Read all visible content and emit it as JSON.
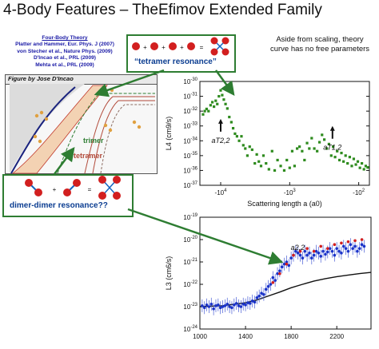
{
  "title": "4-Body Features – TheEfimov Extended Family",
  "references": {
    "heading": "Four-Body Theory",
    "lines": [
      "Platter and Hammer, Eur. Phys. J (2007)",
      "von Stecher et al., Nature Phys. (2009)",
      "D'Incao et al., PRL (2009)",
      "Mehta et al., PRL (2009)"
    ]
  },
  "figure_credit": "Figure by Jose D'Incao",
  "diagram_labels": {
    "trimer": "trimer",
    "tetramer": "tetramer"
  },
  "tetramer_box": {
    "equation": "+ + + =",
    "label": "“tetramer resonance”"
  },
  "dimer_box": {
    "label": "dimer-dimer resonance??"
  },
  "aside_text": "Aside from scaling, theory curve has no free parameters",
  "colors": {
    "green_dots": "#2e8b1e",
    "box_border": "#2e7d32",
    "box_label": "#0b3d91",
    "beige": "#f3d2b3",
    "atom_red": "#d21f1f",
    "arrow_green": "#2e7d32"
  },
  "chart_data": [
    {
      "type": "scatter",
      "ylabel": "L4 (cm9/s)",
      "xlabel": "Scattering length a (a0)",
      "x_scale": "log-negative",
      "y_scale": "log",
      "ylim": [
        1e-37,
        1e-30
      ],
      "xlim": [
        -20000,
        -70
      ],
      "y_ticks": [
        "10-30",
        "10-31",
        "10-32",
        "10-33",
        "10-34",
        "10-35",
        "10-36",
        "10-37"
      ],
      "x_ticks": [
        "-10^4",
        "-10^3",
        "-10^2"
      ],
      "annotations": [
        {
          "text": "a^T_2,2",
          "x": -10000,
          "y": 3e-33
        },
        {
          "text": "a^T_1,2",
          "x": -240,
          "y": 1e-33
        }
      ],
      "series": [
        {
          "x": [
            -18000,
            -17000,
            -16000,
            -15000,
            -14000,
            -13200,
            -12500,
            -11800,
            -11200,
            -10600,
            -10000,
            -9500,
            -9000,
            -8500,
            -8000,
            -7500,
            -7000,
            -6600,
            -6200,
            -5800,
            -5400,
            -5000,
            -4700,
            -4400,
            -4100,
            -3800,
            -3500,
            -3200,
            -3000,
            -2800,
            -2600,
            -2400,
            -2200,
            -2000,
            -1800,
            -1650,
            -1500,
            -1350,
            -1200,
            -1100,
            -1000,
            -920,
            -850,
            -780,
            -720,
            -660,
            -610,
            -560,
            -520,
            -480,
            -440,
            -400,
            -370,
            -340,
            -315,
            -290,
            -270,
            -250,
            -235,
            -220,
            -205,
            -190,
            -178,
            -166,
            -155,
            -145,
            -135,
            -126,
            -118,
            -110,
            -103,
            -96,
            -90,
            -84,
            -79,
            -74
          ],
          "y": [
            6e-33,
            1e-32,
            1.4e-32,
            1e-32,
            2.5e-32,
            4e-32,
            2e-32,
            5e-32,
            3e-32,
            1e-31,
            2.5e-31,
            1.2e-31,
            6e-32,
            3e-32,
            1.5e-32,
            4e-33,
            1.8e-33,
            7e-34,
            3e-34,
            2e-34,
            1e-34,
            2e-34,
            5e-35,
            3e-35,
            1e-35,
            4e-35,
            2.5e-35,
            3e-36,
            1.2e-35,
            4e-36,
            2e-36,
            1e-35,
            3e-36,
            1.2e-36,
            2e-35,
            1e-36,
            5e-36,
            2e-36,
            1e-36,
            5e-36,
            1.5e-36,
            2e-35,
            2e-36,
            3e-35,
            4e-35,
            2e-35,
            5e-36,
            7e-35,
            3e-35,
            1.5e-34,
            3e-35,
            2e-35,
            8e-35,
            2.5e-34,
            1.2e-34,
            3e-35,
            6e-35,
            1e-35,
            4e-35,
            8e-36,
            2e-35,
            5e-36,
            1.5e-35,
            4e-36,
            1e-35,
            3e-36,
            8e-36,
            2e-36,
            6e-36,
            2.5e-36,
            4e-36,
            1.5e-36,
            3e-36,
            1.2e-36,
            2e-36,
            1.6e-36
          ]
        }
      ]
    },
    {
      "type": "scatter",
      "ylabel": "L3 (cm6/s)",
      "xlabel": "",
      "ylim": [
        1e-24,
        1e-19
      ],
      "xlim": [
        1000,
        2500
      ],
      "y_ticks": [
        "10-19",
        "10-20",
        "10-21",
        "10-22",
        "10-23",
        "10-24"
      ],
      "x_ticks": [
        "1000",
        "1400",
        "1800",
        "2200"
      ],
      "annotations": [
        {
          "text": "a*_2,2",
          "x": 1830,
          "y": 1.5e-21
        }
      ],
      "curve": {
        "x": [
          1000,
          1200,
          1400,
          1500,
          1600,
          1700,
          1800,
          1900,
          2000,
          2100,
          2200,
          2300,
          2400,
          2500
        ],
        "y": [
          1e-23,
          1.1e-23,
          1.5e-23,
          2e-23,
          3e-23,
          4.5e-23,
          7e-23,
          1e-22,
          1.4e-22,
          1.8e-22,
          2.2e-22,
          2.6e-22,
          3e-22,
          3.4e-22
        ]
      },
      "series": [
        {
          "x": [
            1020,
            1040,
            1060,
            1080,
            1100,
            1120,
            1140,
            1160,
            1180,
            1200,
            1220,
            1240,
            1260,
            1280,
            1300,
            1320,
            1340,
            1360,
            1380,
            1400,
            1420,
            1440,
            1460,
            1480,
            1500,
            1520,
            1540,
            1560,
            1580,
            1600,
            1620,
            1640,
            1660,
            1680,
            1700,
            1720,
            1740,
            1760,
            1780,
            1800,
            1820,
            1840,
            1860,
            1880,
            1900,
            1920,
            1940,
            1960,
            1980,
            2000,
            2020,
            2040,
            2060,
            2080,
            2100,
            2120,
            2140,
            2160,
            2180,
            2200,
            2220,
            2240,
            2260,
            2280,
            2300,
            2320,
            2340,
            2360,
            2380,
            2400,
            2420,
            2440
          ],
          "y": [
            1.1e-23,
            9e-24,
            1.2e-23,
            1e-23,
            1.3e-23,
            8e-24,
            1.1e-23,
            1.2e-23,
            9e-24,
            1e-23,
            1.1e-23,
            1.3e-23,
            1e-23,
            9e-24,
            1.2e-23,
            1.4e-23,
            1.1e-23,
            1e-23,
            1.3e-23,
            1.2e-23,
            1.5e-23,
            1.4e-23,
            1.8e-23,
            1.6e-23,
            2.5e-23,
            3e-23,
            4e-23,
            3.5e-23,
            6e-23,
            8e-23,
            1e-22,
            2e-22,
            1.5e-22,
            3e-22,
            4e-22,
            6e-22,
            8e-22,
            1e-21,
            7e-22,
            1.5e-21,
            2e-21,
            3e-21,
            2.5e-21,
            2e-21,
            1.5e-21,
            3e-21,
            2e-21,
            2.5e-21,
            1.5e-21,
            2e-21,
            3e-21,
            2.5e-21,
            1.8e-21,
            3e-21,
            2.2e-21,
            2.8e-21,
            4e-21,
            3e-21,
            2e-21,
            4e-21,
            3e-21,
            2.5e-21,
            5e-21,
            4e-21,
            3e-21,
            6e-21,
            4e-21,
            5e-21,
            3e-21,
            4e-21,
            6e-21,
            5e-21
          ]
        },
        {
          "x": [
            1640,
            1700,
            1760,
            1820,
            1880,
            1940,
            2000,
            2060,
            2120,
            2180,
            2240,
            2300,
            2360,
            2420
          ],
          "y": [
            1.2e-22,
            3e-22,
            8e-22,
            2e-21,
            3e-21,
            4e-21,
            3e-21,
            5e-21,
            4e-21,
            6e-21,
            7e-21,
            8e-21,
            9e-21,
            1e-20
          ]
        }
      ]
    }
  ]
}
